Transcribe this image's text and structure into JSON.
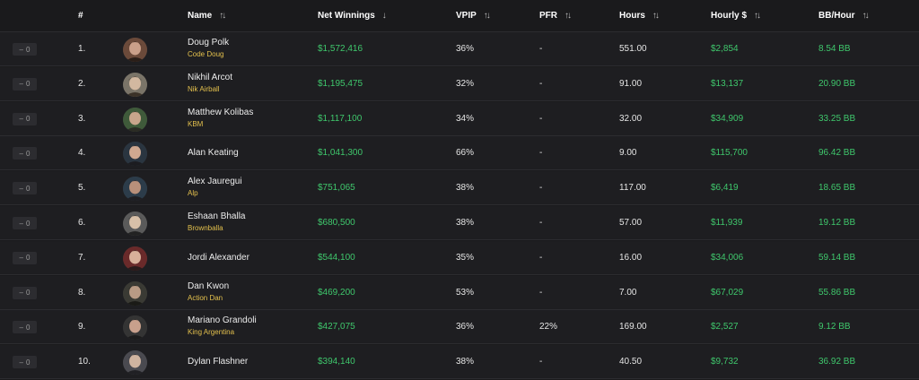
{
  "header": {
    "rank": "#",
    "name": "Name",
    "net_winnings": "Net Winnings",
    "vpip": "VPIP",
    "pfr": "PFR",
    "hours": "Hours",
    "hourly": "Hourly $",
    "bb_hour": "BB/Hour"
  },
  "colors": {
    "positive": "#3fc76c",
    "nickname": "#e3c04d",
    "background": "#1a1a1c",
    "row": "#1e1e21"
  },
  "icons": {
    "sort": "sort-arrows-icon",
    "sort_desc": "arrow-down-icon"
  },
  "rows": [
    {
      "change": "0",
      "rank": "1.",
      "name": "Doug Polk",
      "nickname": "Code Doug",
      "net": "$1,572,416",
      "vpip": "36%",
      "pfr": "-",
      "hours": "551.00",
      "hourly": "$2,854",
      "bb": "8.54 BB"
    },
    {
      "change": "0",
      "rank": "2.",
      "name": "Nikhil Arcot",
      "nickname": "Nik Airball",
      "net": "$1,195,475",
      "vpip": "32%",
      "pfr": "-",
      "hours": "91.00",
      "hourly": "$13,137",
      "bb": "20.90 BB"
    },
    {
      "change": "0",
      "rank": "3.",
      "name": "Matthew Kolibas",
      "nickname": "KBM",
      "net": "$1,117,100",
      "vpip": "34%",
      "pfr": "-",
      "hours": "32.00",
      "hourly": "$34,909",
      "bb": "33.25 BB"
    },
    {
      "change": "0",
      "rank": "4.",
      "name": "Alan Keating",
      "nickname": "",
      "net": "$1,041,300",
      "vpip": "66%",
      "pfr": "-",
      "hours": "9.00",
      "hourly": "$115,700",
      "bb": "96.42 BB"
    },
    {
      "change": "0",
      "rank": "5.",
      "name": "Alex Jauregui",
      "nickname": "Alp",
      "net": "$751,065",
      "vpip": "38%",
      "pfr": "-",
      "hours": "117.00",
      "hourly": "$6,419",
      "bb": "18.65 BB"
    },
    {
      "change": "0",
      "rank": "6.",
      "name": "Eshaan Bhalla",
      "nickname": "Brownballa",
      "net": "$680,500",
      "vpip": "38%",
      "pfr": "-",
      "hours": "57.00",
      "hourly": "$11,939",
      "bb": "19.12 BB"
    },
    {
      "change": "0",
      "rank": "7.",
      "name": "Jordi Alexander",
      "nickname": "",
      "net": "$544,100",
      "vpip": "35%",
      "pfr": "-",
      "hours": "16.00",
      "hourly": "$34,006",
      "bb": "59.14 BB"
    },
    {
      "change": "0",
      "rank": "8.",
      "name": "Dan Kwon",
      "nickname": "Action Dan",
      "net": "$469,200",
      "vpip": "53%",
      "pfr": "-",
      "hours": "7.00",
      "hourly": "$67,029",
      "bb": "55.86 BB"
    },
    {
      "change": "0",
      "rank": "9.",
      "name": "Mariano Grandoli",
      "nickname": "King Argentina",
      "net": "$427,075",
      "vpip": "36%",
      "pfr": "22%",
      "hours": "169.00",
      "hourly": "$2,527",
      "bb": "9.12 BB"
    },
    {
      "change": "0",
      "rank": "10.",
      "name": "Dylan Flashner",
      "nickname": "",
      "net": "$394,140",
      "vpip": "38%",
      "pfr": "-",
      "hours": "40.50",
      "hourly": "$9,732",
      "bb": "36.92 BB"
    }
  ]
}
